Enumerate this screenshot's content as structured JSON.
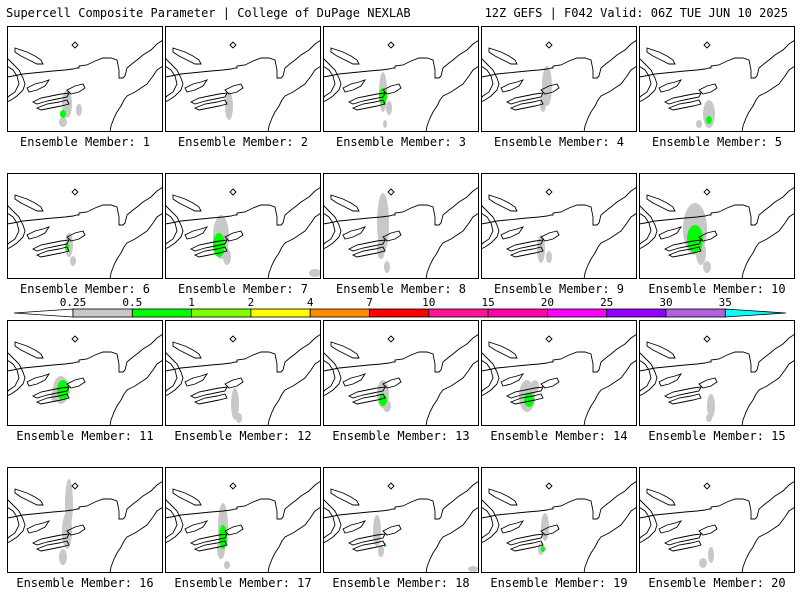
{
  "header": {
    "left": "Supercell Composite Parameter | College of DuPage NEXLAB",
    "right": "12Z GEFS | F042 Valid: 06Z TUE JUN 10 2025"
  },
  "member_label_prefix": "Ensemble Member: ",
  "colors": {
    "border_line": "#000000",
    "lake_outline": "#000000",
    "grey_contour": "#c8c8c8",
    "green_contour": "#00ff00"
  },
  "members": [
    {
      "number": "1",
      "grey": 3,
      "green": 1
    },
    {
      "number": "2",
      "grey": 1,
      "green": 0
    },
    {
      "number": "3",
      "grey": 3,
      "green": 1
    },
    {
      "number": "4",
      "grey": 2,
      "green": 0
    },
    {
      "number": "5",
      "grey": 2,
      "green": 1
    },
    {
      "number": "6",
      "grey": 2,
      "green": 1
    },
    {
      "number": "7",
      "grey": 3,
      "green": 1
    },
    {
      "number": "8",
      "grey": 3,
      "green": 0
    },
    {
      "number": "9",
      "grey": 2,
      "green": 0
    },
    {
      "number": "10",
      "grey": 3,
      "green": 1
    },
    {
      "number": "11",
      "grey": 2,
      "green": 1
    },
    {
      "number": "12",
      "grey": 2,
      "green": 0
    },
    {
      "number": "13",
      "grey": 2,
      "green": 1
    },
    {
      "number": "14",
      "grey": 2,
      "green": 1
    },
    {
      "number": "15",
      "grey": 2,
      "green": 0
    },
    {
      "number": "16",
      "grey": 3,
      "green": 0
    },
    {
      "number": "17",
      "grey": 3,
      "green": 1
    },
    {
      "number": "18",
      "grey": 3,
      "green": 1
    },
    {
      "number": "19",
      "grey": 2,
      "green": 1
    },
    {
      "number": "20",
      "grey": 2,
      "green": 0
    }
  ],
  "colorbar": {
    "levels": [
      "0.25",
      "0.5",
      "1",
      "2",
      "4",
      "7",
      "10",
      "15",
      "20",
      "25",
      "30",
      "35"
    ],
    "colors": [
      "#c8c8c8",
      "#00ff00",
      "#7fff00",
      "#ffff00",
      "#ff8c00",
      "#ff0000",
      "#ff1493",
      "#ff00aa",
      "#ff00ff",
      "#9400ff",
      "#b060e0",
      "#00ffff"
    ]
  }
}
